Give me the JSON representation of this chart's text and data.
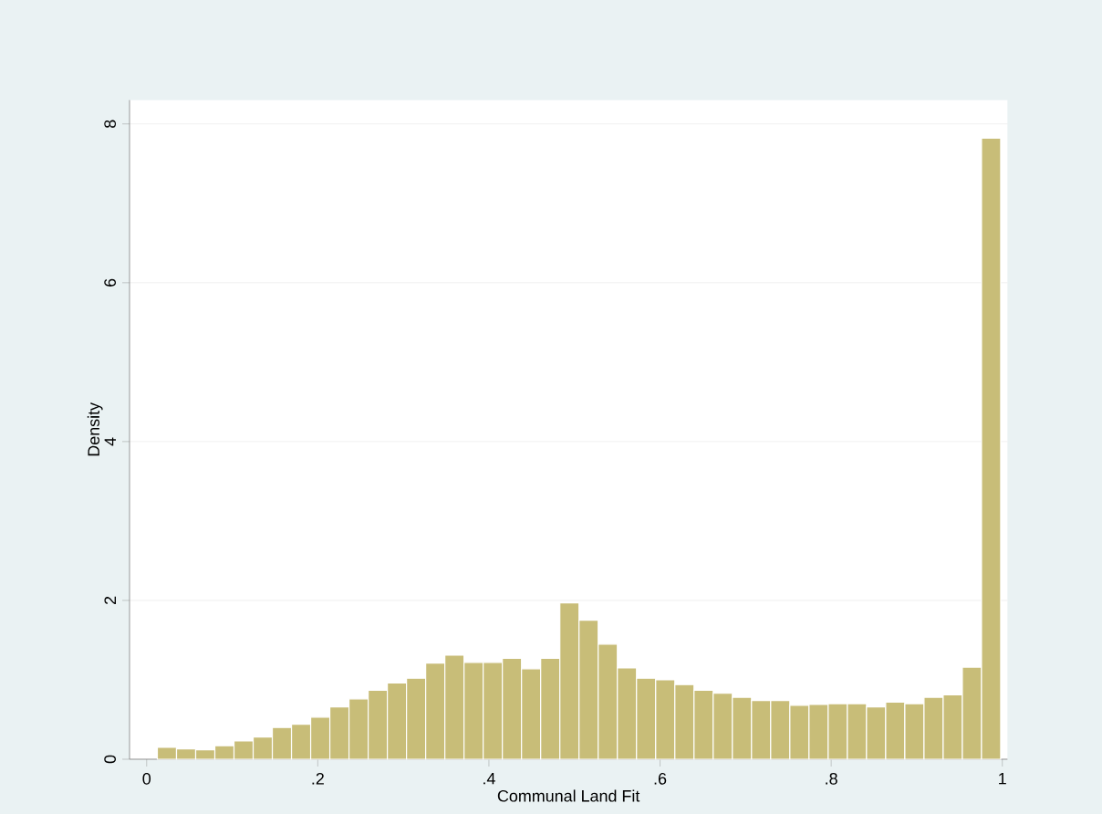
{
  "chart_data": {
    "type": "histogram",
    "xlabel": "Communal Land Fit",
    "ylabel": "Density",
    "bins": [
      0.0125,
      0.0349,
      0.0573,
      0.0797,
      0.1021,
      0.1245,
      0.1469,
      0.1693,
      0.1917,
      0.2141,
      0.2365,
      0.2589,
      0.2813,
      0.3037,
      0.3261,
      0.3485,
      0.3709,
      0.3933,
      0.4157,
      0.4381,
      0.4605,
      0.4829,
      0.5053,
      0.5277,
      0.5501,
      0.5725,
      0.5949,
      0.6173,
      0.6397,
      0.6621,
      0.6845,
      0.7069,
      0.7293,
      0.7517,
      0.7741,
      0.7965,
      0.8189,
      0.8413,
      0.8637,
      0.8861,
      0.9085,
      0.9309,
      0.9533,
      0.9757,
      0.9981
    ],
    "values": [
      0.15,
      0.13,
      0.12,
      0.17,
      0.23,
      0.28,
      0.4,
      0.44,
      0.53,
      0.66,
      0.76,
      0.87,
      0.96,
      1.02,
      1.21,
      1.31,
      1.22,
      1.22,
      1.27,
      1.14,
      1.27,
      1.97,
      1.75,
      1.45,
      1.15,
      1.02,
      1.0,
      0.94,
      0.87,
      0.83,
      0.78,
      0.74,
      0.74,
      0.68,
      0.69,
      0.7,
      0.7,
      0.66,
      0.72,
      0.7,
      0.78,
      0.81,
      1.16,
      7.82
    ],
    "color": "#c8bd78",
    "xlim": [
      -0.02,
      1.006
    ],
    "ylim": [
      0,
      8.3
    ],
    "xticks": [
      0,
      {
        "value": 0.2,
        "label": ".2"
      },
      {
        "value": 0.4,
        "label": ".4"
      },
      {
        "value": 0.6,
        "label": ".6"
      },
      {
        "value": 0.8,
        "label": ".8"
      },
      1
    ],
    "yticks": [
      0,
      2,
      4,
      6,
      8
    ],
    "grid": "y"
  }
}
